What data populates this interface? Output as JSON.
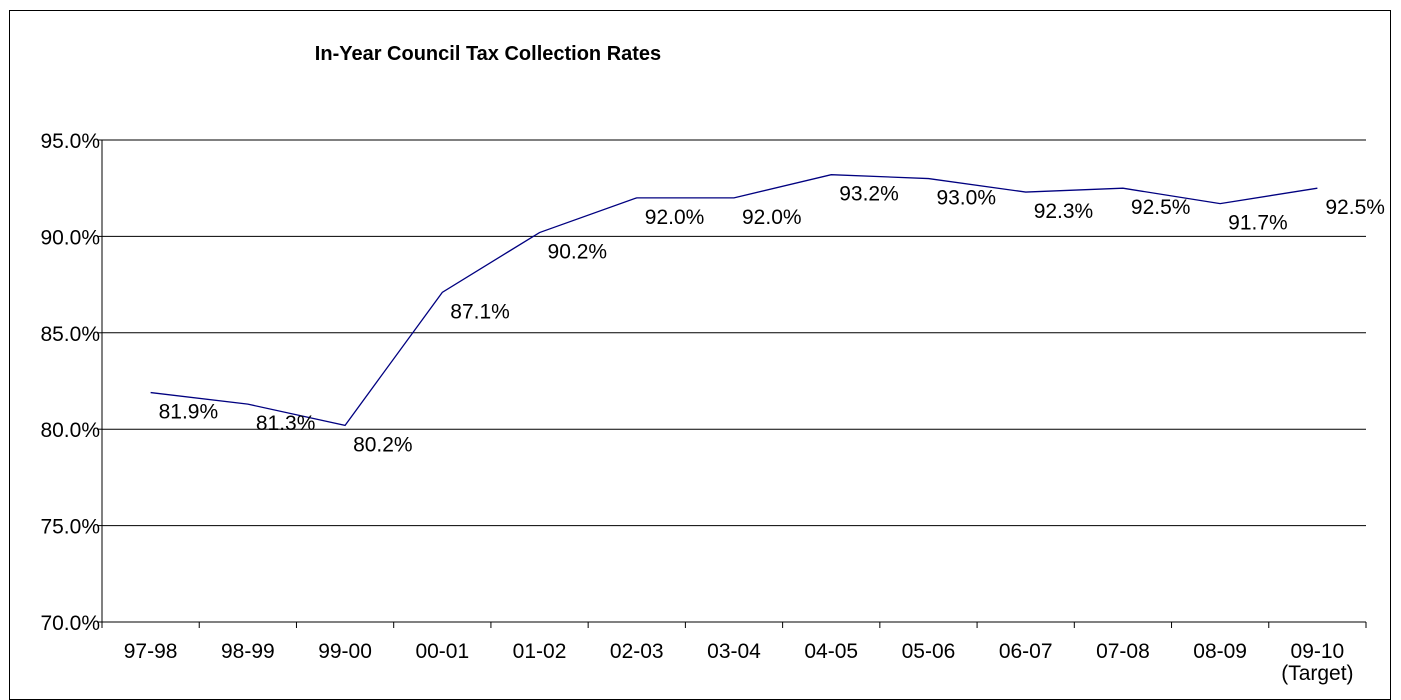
{
  "chart_data": {
    "type": "line",
    "title": "In-Year Council Tax Collection Rates",
    "xlabel": "",
    "ylabel": "",
    "categories": [
      "97-98",
      "98-99",
      "99-00",
      "00-01",
      "01-02",
      "02-03",
      "03-04",
      "04-05",
      "05-06",
      "06-07",
      "07-08",
      "08-09",
      "09-10"
    ],
    "category_sublabels": [
      "",
      "",
      "",
      "",
      "",
      "",
      "",
      "",
      "",
      "",
      "",
      "",
      "(Target)"
    ],
    "series": [
      {
        "values": [
          81.9,
          81.3,
          80.2,
          87.1,
          90.2,
          92.0,
          92.0,
          93.2,
          93.0,
          92.3,
          92.5,
          91.7,
          92.5
        ],
        "labels": [
          "81.9%",
          "81.3%",
          "80.2%",
          "87.1%",
          "90.2%",
          "92.0%",
          "92.0%",
          "93.2%",
          "93.0%",
          "92.3%",
          "92.5%",
          "91.7%",
          "92.5%"
        ],
        "color": "#000080"
      }
    ],
    "ylim": [
      70,
      95
    ],
    "yticks": [
      70,
      75,
      80,
      85,
      90,
      95
    ],
    "ytick_labels": [
      "70.0%",
      "75.0%",
      "80.0%",
      "85.0%",
      "90.0%",
      "95.0%"
    ],
    "grid": true,
    "legend": "none"
  }
}
